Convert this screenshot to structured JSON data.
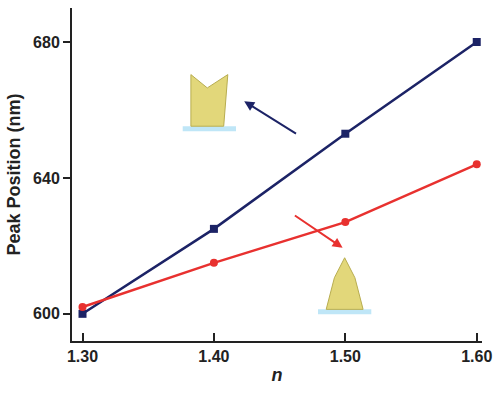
{
  "chart_data": {
    "type": "scatter",
    "x_label": "n",
    "y_label": "Peak Position (nm)",
    "x": [
      1.3,
      1.4,
      1.5,
      1.6
    ],
    "series": [
      {
        "color": "#1c2366",
        "marker": "square",
        "line_style": "solid",
        "values": [
          600,
          625,
          653,
          680
        ]
      },
      {
        "color": "#e8312f",
        "marker": "circle",
        "line_style": "solid",
        "values": [
          602,
          615,
          627,
          644
        ]
      }
    ],
    "xlim": [
      1.292,
      1.604
    ],
    "xticks": [
      {
        "value": 1.3,
        "label": "1.30"
      },
      {
        "value": 1.4,
        "label": "1.40"
      },
      {
        "value": 1.5,
        "label": "1.50"
      },
      {
        "value": 1.6,
        "label": "1.60"
      }
    ],
    "ylim": [
      592,
      690
    ],
    "yticks": [
      600,
      640,
      680
    ],
    "grid": false
  }
}
